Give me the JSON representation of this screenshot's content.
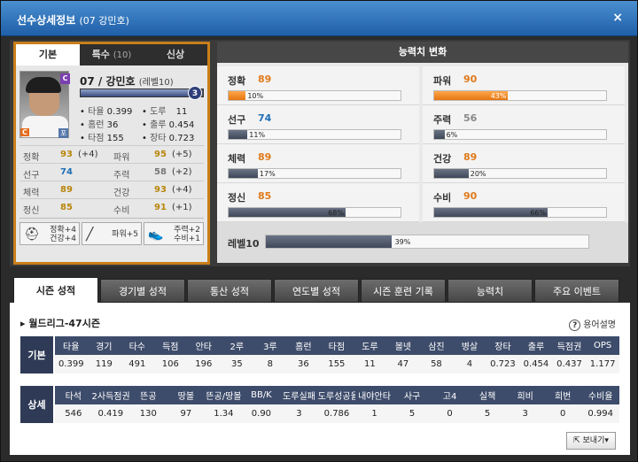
{
  "window": {
    "title": "선수상세정보",
    "subtitle": "(07 강민호)",
    "close": "×"
  },
  "card": {
    "tabs": [
      {
        "label": "기본"
      },
      {
        "label": "특수",
        "count": "(10)"
      },
      {
        "label": "신상"
      }
    ],
    "grade": "C",
    "name": "07 / 강민호",
    "level_label": "(레벨10)",
    "level_num": "3",
    "exp_fraction": 0.95,
    "position_badge": "C",
    "position_badge2": "포",
    "stats": [
      {
        "l": "타율",
        "v": "0.399"
      },
      {
        "l": "도루",
        "v": "11"
      },
      {
        "l": "홈런",
        "v": "36"
      },
      {
        "l": "출루",
        "v": "0.454"
      },
      {
        "l": "타점",
        "v": "155"
      },
      {
        "l": "장타",
        "v": "0.723"
      }
    ],
    "abilities": [
      {
        "l1": "정확",
        "v1": "93",
        "b1": "(+4)",
        "c1": "#b8860b",
        "l2": "파워",
        "v2": "95",
        "b2": "(+5)",
        "c2": "#b8860b"
      },
      {
        "l1": "선구",
        "v1": "74",
        "b1": "",
        "c1": "#1f6fb5",
        "l2": "주력",
        "v2": "58",
        "b2": "(+2)",
        "c2": "#777"
      },
      {
        "l1": "체력",
        "v1": "89",
        "b1": "",
        "c1": "#b8860b",
        "l2": "건강",
        "v2": "93",
        "b2": "(+4)",
        "c2": "#b8860b"
      },
      {
        "l1": "정신",
        "v1": "85",
        "b1": "",
        "c1": "#b8860b",
        "l2": "수비",
        "v2": "91",
        "b2": "(+1)",
        "c2": "#b8860b"
      }
    ],
    "skills": [
      {
        "icon": "helmet-icon",
        "glyph": "⛑",
        "t1": "정확+4",
        "t2": "건강+4"
      },
      {
        "icon": "bat-icon",
        "glyph": "╱",
        "t1": "파워+5",
        "t2": ""
      },
      {
        "icon": "shoe-icon",
        "glyph": "👟",
        "t1": "주력+2",
        "t2": "수비+1"
      }
    ]
  },
  "growth": {
    "title": "능력치 변화",
    "items": [
      {
        "name": "정확",
        "value": "89",
        "pct": "10%",
        "frac": 0.1,
        "hl": true,
        "color": "#e07a1a"
      },
      {
        "name": "파워",
        "value": "90",
        "pct": "43%",
        "frac": 0.43,
        "hl": true,
        "color": "#e07a1a"
      },
      {
        "name": "선구",
        "value": "74",
        "pct": "11%",
        "frac": 0.11,
        "hl": false,
        "color": "#1f6fb5"
      },
      {
        "name": "주력",
        "value": "56",
        "pct": "6%",
        "frac": 0.06,
        "hl": false,
        "color": "#888"
      },
      {
        "name": "체력",
        "value": "89",
        "pct": "17%",
        "frac": 0.17,
        "hl": false,
        "color": "#e07a1a"
      },
      {
        "name": "건강",
        "value": "89",
        "pct": "20%",
        "frac": 0.2,
        "hl": false,
        "color": "#e07a1a"
      },
      {
        "name": "정신",
        "value": "85",
        "pct": "68%",
        "frac": 0.68,
        "hl": false,
        "color": "#e07a1a"
      },
      {
        "name": "수비",
        "value": "90",
        "pct": "66%",
        "frac": 0.66,
        "hl": false,
        "color": "#e07a1a"
      }
    ],
    "level": {
      "name": "레벨10",
      "pct": "39%",
      "frac": 0.39
    }
  },
  "tabs": [
    "시즌 성적",
    "경기별 성적",
    "통산 성적",
    "연도별 성적",
    "시즌 훈련 기록",
    "능력치",
    "주요 이벤트"
  ],
  "season": {
    "league": "월드리그-47시즌",
    "help": "용어설명",
    "basic": {
      "label": "기본",
      "headers": [
        "타율",
        "경기",
        "타수",
        "득점",
        "안타",
        "2루",
        "3루",
        "홈런",
        "타점",
        "도루",
        "볼넷",
        "삼진",
        "병살",
        "장타",
        "출루",
        "득점권",
        "OPS"
      ],
      "values": [
        "0.399",
        "119",
        "491",
        "106",
        "196",
        "35",
        "8",
        "36",
        "155",
        "11",
        "47",
        "58",
        "4",
        "0.723",
        "0.454",
        "0.437",
        "1.177"
      ]
    },
    "detail": {
      "label": "상세",
      "headers": [
        "타석",
        "2사득점권",
        "뜬공",
        "땅볼",
        "뜬공/땅볼",
        "BB/K",
        "도루실패",
        "도루성공율",
        "내야안타",
        "사구",
        "고4",
        "실책",
        "희비",
        "희번",
        "수비율"
      ],
      "values": [
        "546",
        "0.419",
        "130",
        "97",
        "1.34",
        "0.90",
        "3",
        "0.786",
        "1",
        "5",
        "0",
        "5",
        "3",
        "0",
        "0.994"
      ]
    },
    "export": "보내기▾"
  }
}
